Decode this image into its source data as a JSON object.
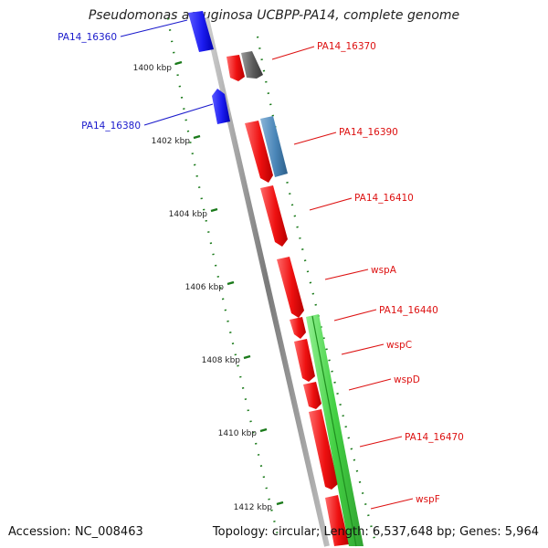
{
  "title": "Pseudomonas aeruginosa UCBPP-PA14, complete genome",
  "accession": "Accession: NC_008463",
  "summary": "Topology: circular; Length: 6,537,648 bp; Genes: 5,964",
  "colors": {
    "plus_strand_gene": "#2a2af0",
    "minus_strand_gene": "#ee1c1c",
    "label_plus": "#1a1acc",
    "label_minus": "#dd1111",
    "hypothetical_gene": "#5a5a5a",
    "rna_feature": "#4a86b8",
    "operon_feature": "#33cc33",
    "ruler_dots": "#1a7a1a",
    "backbone": "#8a8a8a"
  },
  "ruler": {
    "unit": "kbp",
    "ticks": [
      {
        "label": "1400 kbp"
      },
      {
        "label": "1402 kbp"
      },
      {
        "label": "1404 kbp"
      },
      {
        "label": "1406 kbp"
      },
      {
        "label": "1408 kbp"
      },
      {
        "label": "1410 kbp"
      },
      {
        "label": "1412 kbp"
      }
    ]
  },
  "genes": [
    {
      "name": "PA14_16360",
      "strand": "plus",
      "color": "plus_strand_gene"
    },
    {
      "name": "PA14_16370",
      "strand": "minus",
      "color": "minus_strand_gene"
    },
    {
      "name": "PA14_16380",
      "strand": "plus",
      "color": "plus_strand_gene"
    },
    {
      "name": "PA14_16390",
      "strand": "minus",
      "color": "minus_strand_gene"
    },
    {
      "name": "PA14_16410",
      "strand": "minus",
      "color": "minus_strand_gene"
    },
    {
      "name": "wspA",
      "strand": "minus",
      "color": "minus_strand_gene"
    },
    {
      "name": "PA14_16440",
      "strand": "minus",
      "color": "minus_strand_gene"
    },
    {
      "name": "wspC",
      "strand": "minus",
      "color": "minus_strand_gene"
    },
    {
      "name": "wspD",
      "strand": "minus",
      "color": "minus_strand_gene"
    },
    {
      "name": "PA14_16470",
      "strand": "minus",
      "color": "minus_strand_gene"
    },
    {
      "name": "wspF",
      "strand": "minus",
      "color": "minus_strand_gene"
    }
  ]
}
